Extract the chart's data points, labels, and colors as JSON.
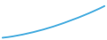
{
  "line_color": "#4aaee0",
  "linewidth": 1.4,
  "background_color": "#ffffff",
  "x_values": [
    0,
    1,
    2,
    3,
    4,
    5,
    6,
    7,
    8,
    9,
    10,
    11,
    12,
    13,
    14,
    15,
    16,
    17,
    18,
    19,
    20
  ],
  "y_values": [
    0.2,
    0.5,
    0.9,
    1.4,
    1.9,
    2.5,
    3.1,
    3.8,
    4.5,
    5.3,
    6.1,
    7.0,
    7.9,
    8.9,
    9.9,
    10.9,
    12.0,
    13.1,
    14.3,
    15.5,
    16.8
  ],
  "xlim": [
    -0.5,
    20.5
  ],
  "ylim": [
    -1,
    20
  ]
}
